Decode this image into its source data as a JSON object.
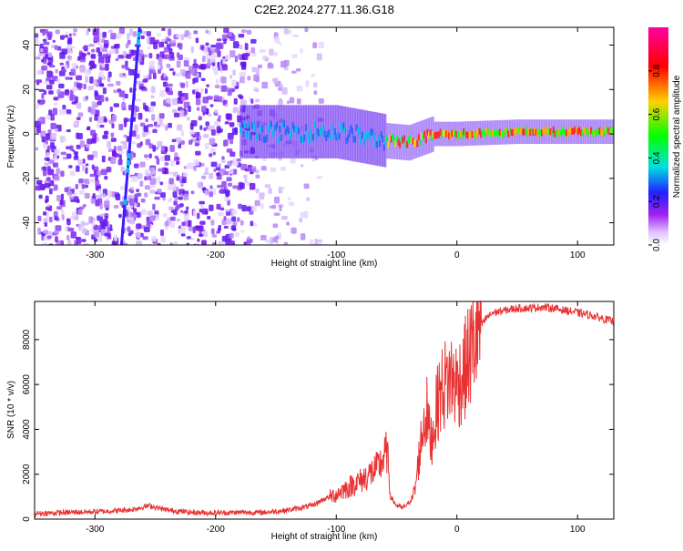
{
  "title": "C2E2.2024.277.11.36.G18",
  "chart_data": [
    {
      "type": "heatmap",
      "xlabel": "Height of straight line (km)",
      "ylabel": "Frequency (Hz)",
      "xlim": [
        -350,
        130
      ],
      "ylim": [
        -50,
        48
      ],
      "xticks": [
        -300,
        -200,
        -100,
        0,
        100
      ],
      "xtick_labels": [
        "-300",
        "-200",
        "-100",
        "0",
        "100"
      ],
      "yticks": [
        -40,
        -20,
        0,
        20,
        40
      ],
      "ytick_labels": [
        "-40",
        "-20",
        "0",
        "20",
        "40"
      ],
      "colorbar": {
        "label": "Normalized spectral amplitude",
        "range": [
          0,
          1
        ],
        "ticks": [
          0.0,
          0.2,
          0.4,
          0.6,
          0.8
        ],
        "tick_labels": [
          "0.0",
          "0.2",
          "0.4",
          "0.6",
          "0.8"
        ],
        "colors": [
          "#ffffff",
          "#a020f0",
          "#2020ff",
          "#00e0e0",
          "#00ff00",
          "#ffd000",
          "#ff0000",
          "#ff00a0"
        ]
      },
      "features": {
        "noise_region_x": [
          -350,
          -140
        ],
        "diagonal_streak": [
          [
            -278,
            -50
          ],
          [
            -263,
            48
          ]
        ],
        "signal_band_start_x": -180,
        "signal_centre_hz": [
          [
            -180,
            1
          ],
          [
            -100,
            1
          ],
          [
            -60,
            -3
          ],
          [
            -40,
            -4
          ],
          [
            -20,
            0
          ],
          [
            0,
            0
          ],
          [
            50,
            1
          ],
          [
            100,
            1
          ],
          [
            130,
            1
          ]
        ]
      }
    },
    {
      "type": "line",
      "xlabel": "Height of straight line (km)",
      "ylabel": "SNR (10 * v/v)",
      "xlim": [
        -350,
        130
      ],
      "ylim": [
        0,
        9700
      ],
      "xticks": [
        -300,
        -200,
        -100,
        0,
        100
      ],
      "xtick_labels": [
        "-300",
        "-200",
        "-100",
        "0",
        "100"
      ],
      "yticks": [
        0,
        2000,
        4000,
        6000,
        8000
      ],
      "ytick_labels": [
        "0",
        "2000",
        "4000",
        "6000",
        "8000"
      ],
      "line_color": "#e83232",
      "series": [
        {
          "name": "SNR",
          "x": [
            -350,
            -320,
            -290,
            -270,
            -255,
            -240,
            -220,
            -200,
            -180,
            -160,
            -150,
            -140,
            -130,
            -120,
            -110,
            -100,
            -95,
            -90,
            -85,
            -80,
            -75,
            -70,
            -65,
            -62,
            -58,
            -55,
            -50,
            -45,
            -40,
            -35,
            -32,
            -28,
            -25,
            -22,
            -20,
            -15,
            -10,
            -5,
            0,
            5,
            10,
            15,
            20,
            25,
            30,
            40,
            50,
            60,
            70,
            80,
            90,
            100,
            110,
            120,
            130
          ],
          "values": [
            250,
            300,
            350,
            420,
            600,
            400,
            300,
            280,
            300,
            300,
            350,
            400,
            500,
            600,
            900,
            1100,
            1300,
            1400,
            1600,
            1700,
            1900,
            2100,
            2300,
            2600,
            3000,
            1000,
            600,
            500,
            700,
            1200,
            2500,
            4200,
            4800,
            3500,
            3800,
            5500,
            6000,
            6300,
            6000,
            6400,
            7200,
            8000,
            8600,
            9000,
            9200,
            9300,
            9400,
            9400,
            9450,
            9400,
            9300,
            9200,
            9100,
            8950,
            8800
          ]
        }
      ]
    }
  ]
}
